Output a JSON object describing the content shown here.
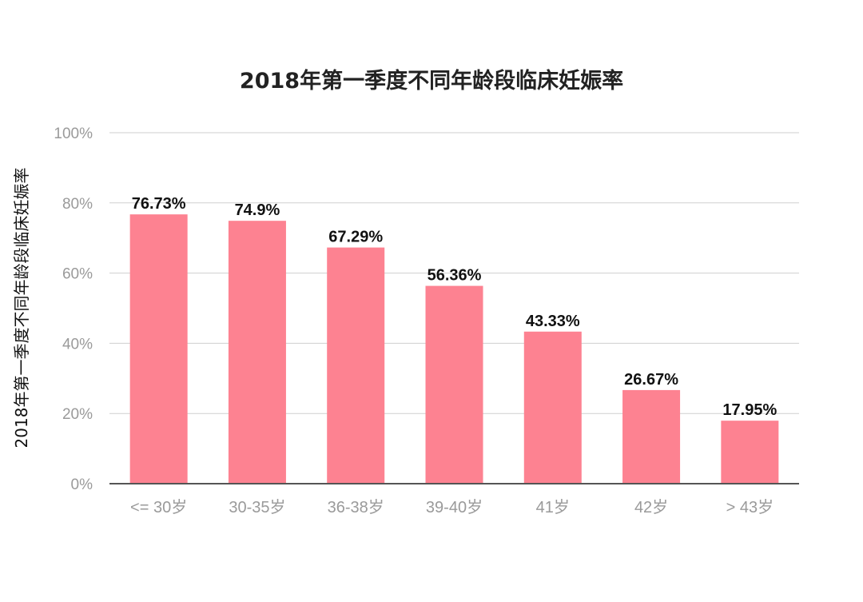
{
  "chart_data": {
    "type": "bar",
    "title": "2018年第一季度不同年龄段临床妊娠率",
    "xlabel": "",
    "ylabel": "2018年第一季度不同年龄段临床妊娠率",
    "categories": [
      "<= 30岁",
      "30-35岁",
      "36-38岁",
      "39-40岁",
      "41岁",
      "42岁",
      "> 43岁"
    ],
    "values": [
      76.73,
      74.9,
      67.29,
      56.36,
      43.33,
      26.67,
      17.95
    ],
    "data_labels": [
      "76.73%",
      "74.9%",
      "67.29%",
      "56.36%",
      "43.33%",
      "26.67%",
      "17.95%"
    ],
    "ylim": [
      0,
      100
    ],
    "yticks": [
      0,
      20,
      40,
      60,
      80,
      100
    ],
    "ytick_labels": [
      "0%",
      "20%",
      "40%",
      "60%",
      "80%",
      "100%"
    ],
    "grid": true,
    "legend": "none",
    "bar_color": "#fd8291"
  }
}
